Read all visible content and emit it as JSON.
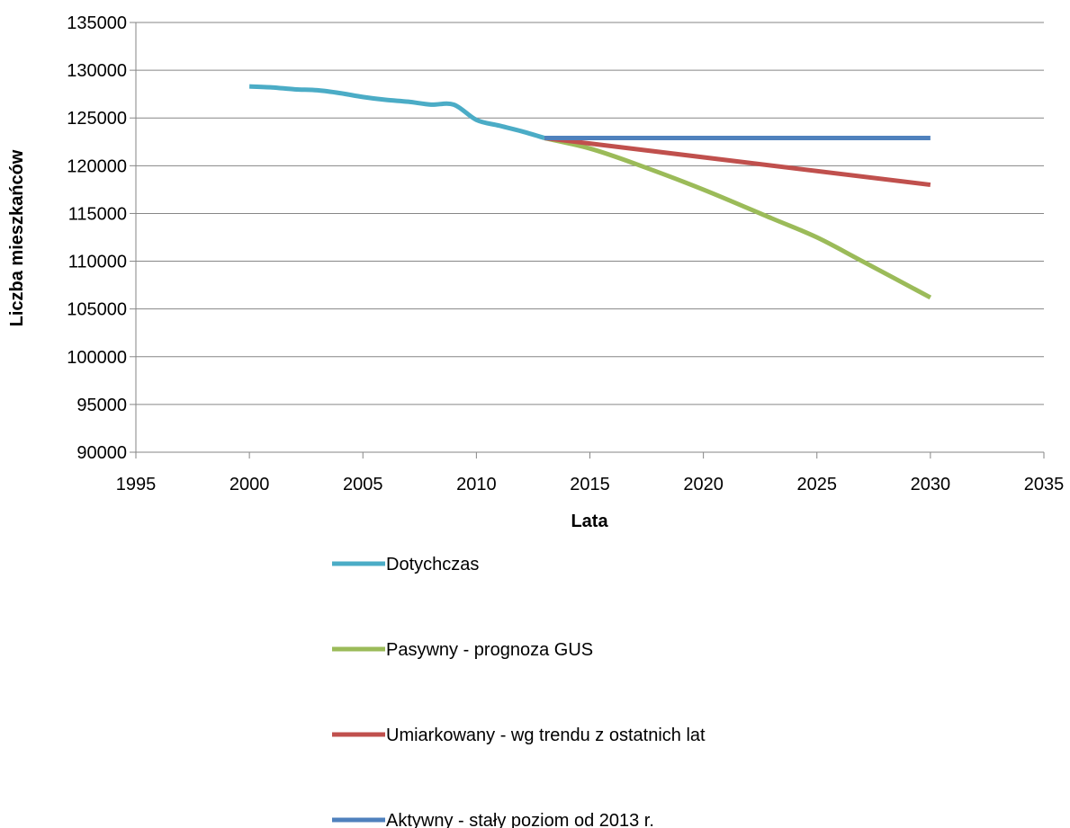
{
  "chart_data": {
    "type": "line",
    "title": "",
    "xlabel": "Lata",
    "ylabel": "Liczba mieszkańców",
    "xlim": [
      1995,
      2035
    ],
    "ylim": [
      90000,
      135000
    ],
    "x_ticks": [
      "1995",
      "2000",
      "2005",
      "2010",
      "2015",
      "2020",
      "2025",
      "2030",
      "2035"
    ],
    "y_ticks": [
      "90000",
      "95000",
      "100000",
      "105000",
      "110000",
      "115000",
      "120000",
      "125000",
      "130000",
      "135000"
    ],
    "grid": "horizontal",
    "legend_position": "bottom",
    "series": [
      {
        "name": "Dotychczas",
        "color": "#4bacc6",
        "x": [
          2000,
          2001,
          2002,
          2003,
          2004,
          2005,
          2006,
          2007,
          2008,
          2009,
          2010,
          2011,
          2012,
          2013
        ],
        "y": [
          128300,
          128200,
          128000,
          127900,
          127600,
          127200,
          126900,
          126700,
          126400,
          126400,
          124800,
          124200,
          123600,
          122900
        ]
      },
      {
        "name": "Pasywny - prognoza GUS",
        "color": "#9bbb59",
        "x": [
          2013,
          2015,
          2017,
          2020,
          2023,
          2025,
          2027,
          2030
        ],
        "y": [
          122900,
          121800,
          120200,
          117500,
          114500,
          112500,
          110000,
          106200
        ]
      },
      {
        "name": "Umiarkowany - wg trendu z ostatnich lat",
        "color": "#c0504d",
        "x": [
          2013,
          2030
        ],
        "y": [
          122900,
          118000
        ]
      },
      {
        "name": "Aktywny - stały poziom od 2013 r.",
        "color": "#4f81bd",
        "x": [
          2013,
          2030
        ],
        "y": [
          122900,
          122900
        ]
      }
    ]
  }
}
